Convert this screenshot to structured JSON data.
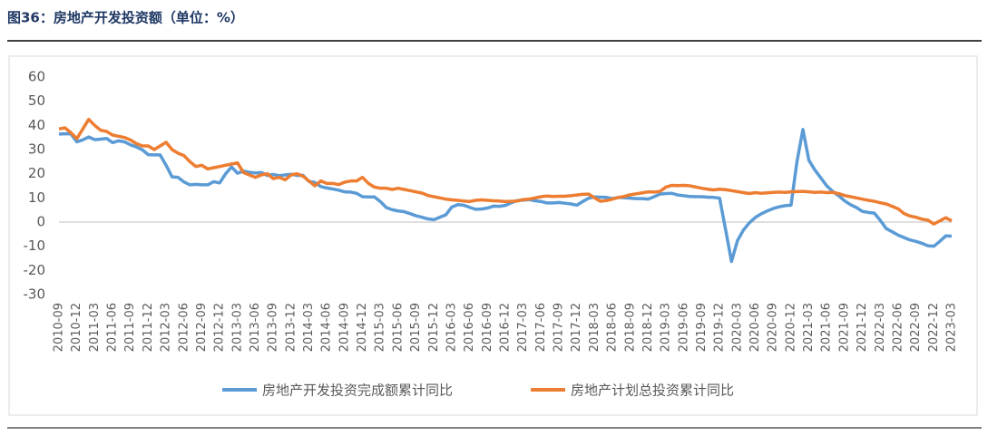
{
  "chart_data": {
    "type": "line",
    "title": "图36：房地产开发投资额（单位：%）",
    "categories": [
      "2010-09",
      null,
      null,
      "2010-12",
      null,
      null,
      "2011-03",
      null,
      null,
      "2011-06",
      null,
      null,
      "2011-09",
      null,
      null,
      "2011-12",
      null,
      null,
      "2012-03",
      null,
      null,
      "2012-06",
      null,
      null,
      "2012-09",
      null,
      null,
      "2012-12",
      null,
      null,
      "2013-03",
      null,
      null,
      "2013-06",
      null,
      null,
      "2013-09",
      null,
      null,
      "2013-12",
      null,
      null,
      "2014-03",
      null,
      null,
      "2014-06",
      null,
      null,
      "2014-09",
      null,
      null,
      "2014-12",
      null,
      null,
      "2015-03",
      null,
      null,
      "2015-06",
      null,
      null,
      "2015-09",
      null,
      null,
      "2015-12",
      null,
      null,
      "2016-03",
      null,
      null,
      "2016-06",
      null,
      null,
      "2016-09",
      null,
      null,
      "2016-12",
      null,
      null,
      "2017-03",
      null,
      null,
      "2017-06",
      null,
      null,
      "2017-09",
      null,
      null,
      "2017-12",
      null,
      null,
      "2018-03",
      null,
      null,
      "2018-06",
      null,
      null,
      "2018-09",
      null,
      null,
      "2018-12",
      null,
      null,
      "2019-03",
      null,
      null,
      "2019-06",
      null,
      null,
      "2019-09",
      null,
      null,
      "2019-12",
      null,
      null,
      "2020-03",
      null,
      null,
      "2020-06",
      null,
      null,
      "2020-09",
      null,
      null,
      "2020-12",
      null,
      null,
      "2021-03",
      null,
      null,
      "2021-06",
      null,
      null,
      "2021-09",
      null,
      null,
      "2021-12",
      null,
      null,
      "2022-03",
      null,
      null,
      "2022-06",
      null,
      null,
      "2022-09",
      null,
      null,
      "2022-12",
      null,
      null,
      "2023-03"
    ],
    "series": [
      {
        "name": "房地产开发投资完成额累计同比",
        "color": "#5b9bd5",
        "values": [
          36.4,
          36.5,
          36.5,
          33.2,
          34,
          35.2,
          34.1,
          34.3,
          34.6,
          32.9,
          33.6,
          33.2,
          32.0,
          31.1,
          29.9,
          27.9,
          27.8,
          27.8,
          23.5,
          18.7,
          18.5,
          16.6,
          15.4,
          15.6,
          15.4,
          15.4,
          16.7,
          16.2,
          20,
          22.8,
          20.2,
          21.1,
          20.6,
          20.3,
          20.5,
          19.3,
          19.7,
          19.2,
          19.5,
          19.8,
          19.3,
          19.3,
          16.8,
          16.4,
          14.7,
          14.1,
          13.7,
          13.2,
          12.5,
          12.4,
          11.9,
          10.5,
          10.4,
          10.4,
          8.5,
          6.0,
          5.1,
          4.6,
          4.3,
          3.5,
          2.6,
          2.0,
          1.3,
          1.0,
          2.0,
          3.0,
          6.2,
          7.2,
          7.0,
          6.1,
          5.3,
          5.4,
          5.8,
          6.6,
          6.5,
          6.9,
          8.0,
          8.9,
          9.1,
          9.3,
          8.8,
          8.5,
          7.9,
          7.9,
          8.1,
          7.8,
          7.5,
          7.0,
          8.5,
          9.9,
          10.4,
          10.3,
          10.2,
          9.7,
          10.2,
          10.1,
          9.9,
          9.7,
          9.7,
          9.5,
          10.5,
          11.6,
          11.8,
          11.9,
          11.2,
          10.9,
          10.6,
          10.5,
          10.5,
          10.3,
          10.2,
          9.9,
          -3,
          -16.3,
          -7.7,
          -3.3,
          -0.3,
          1.9,
          3.4,
          4.6,
          5.6,
          6.3,
          6.8,
          7.0,
          25,
          38.3,
          25.6,
          21.6,
          18.3,
          15.0,
          12.7,
          10.9,
          8.8,
          7.2,
          6.0,
          4.4,
          4.0,
          3.7,
          0.7,
          -2.7,
          -4.0,
          -5.4,
          -6.4,
          -7.4,
          -8.0,
          -8.8,
          -9.8,
          -10.0,
          -8,
          -5.7,
          -5.8
        ]
      },
      {
        "name": "房地产计划总投资累计同比",
        "color": "#ed7d31",
        "values": [
          38.5,
          39,
          37,
          34.5,
          38.5,
          42.5,
          40,
          38,
          37.5,
          36,
          35.5,
          35,
          34,
          32.5,
          31.5,
          31.5,
          30,
          31.5,
          33,
          30,
          28.5,
          27.5,
          25,
          23,
          23.5,
          22,
          22.5,
          23,
          23.5,
          24,
          24.5,
          20.5,
          19.5,
          18.5,
          19.5,
          20,
          18,
          18.5,
          17.5,
          19.5,
          20,
          19,
          17,
          15,
          17,
          16,
          16,
          15.5,
          16.5,
          17,
          17,
          18.5,
          16,
          14.5,
          14,
          14,
          13.5,
          14,
          13.5,
          13,
          12.5,
          12,
          11,
          10.5,
          10,
          9.5,
          9.2,
          9,
          8.7,
          8.5,
          9,
          9.2,
          9,
          8.8,
          8.7,
          8.5,
          8.6,
          8.7,
          9.3,
          9.5,
          10.0,
          10.5,
          10.8,
          10.6,
          10.7,
          10.7,
          10.9,
          11.2,
          11.5,
          11.6,
          10.0,
          8.6,
          8.9,
          9.5,
          10.2,
          10.6,
          11.3,
          11.7,
          12.1,
          12.5,
          12.4,
          12.7,
          14.5,
          15.2,
          15.1,
          15.2,
          15,
          14.5,
          14,
          13.6,
          13.3,
          13.6,
          13.4,
          13,
          12.6,
          12.2,
          11.8,
          12.2,
          11.9,
          12.1,
          12.3,
          12.4,
          12.3,
          12.5,
          12.6,
          12.7,
          12.5,
          12.3,
          12.4,
          12.2,
          12.3,
          11.8,
          11,
          10.5,
          10,
          9.5,
          9,
          8.6,
          8,
          7.5,
          6.5,
          5.5,
          3.5,
          2.5,
          2,
          1.2,
          0.8,
          -0.8,
          0.5,
          1.8,
          0.5
        ]
      }
    ],
    "ylim": [
      -30,
      60
    ],
    "yticks": [
      -30,
      -20,
      -10,
      0,
      10,
      20,
      30,
      40,
      50,
      60
    ],
    "grid": false
  }
}
